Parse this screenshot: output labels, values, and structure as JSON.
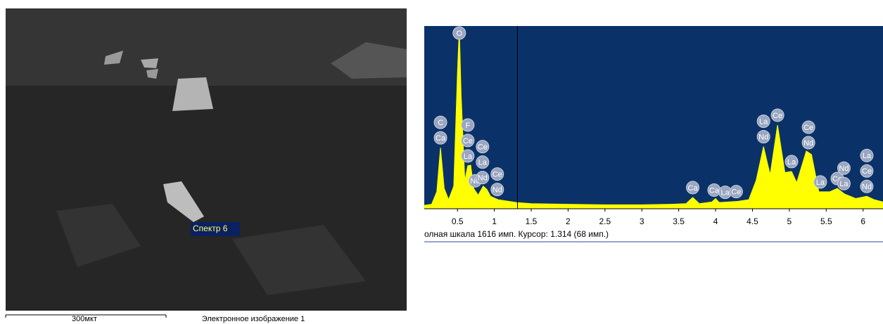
{
  "image": {
    "spot_label": "Спектр 6",
    "scale_bar": "300мкт",
    "caption": "Электронное изображение 1"
  },
  "chart_data": {
    "type": "area",
    "color": "#ffff00",
    "background": "#0a3268",
    "x": [
      0.05,
      0.15,
      0.22,
      0.27,
      0.32,
      0.38,
      0.45,
      0.5,
      0.525,
      0.55,
      0.6,
      0.64,
      0.68,
      0.72,
      0.78,
      0.85,
      0.9,
      0.95,
      1.05,
      1.15,
      1.3,
      1.5,
      2.0,
      2.5,
      3.0,
      3.4,
      3.6,
      3.69,
      3.78,
      3.95,
      4.0,
      4.05,
      4.3,
      4.45,
      4.55,
      4.65,
      4.74,
      4.84,
      4.94,
      5.03,
      5.1,
      5.23,
      5.3,
      5.4,
      5.55,
      5.65,
      5.75,
      5.9,
      6.05,
      6.15,
      6.27
    ],
    "values": [
      30,
      40,
      150,
      540,
      180,
      80,
      200,
      1200,
      1600,
      1000,
      250,
      380,
      385,
      180,
      120,
      200,
      170,
      110,
      80,
      70,
      55,
      45,
      40,
      35,
      35,
      40,
      45,
      100,
      45,
      60,
      90,
      55,
      65,
      80,
      250,
      550,
      300,
      740,
      320,
      330,
      230,
      510,
      480,
      150,
      150,
      180,
      130,
      90,
      110,
      80,
      60
    ],
    "xlim": [
      0.05,
      6.27
    ],
    "ylim": [
      0,
      1616
    ],
    "xticks": [
      0.5,
      1,
      1.5,
      2,
      2.5,
      3,
      3.5,
      4,
      4.5,
      5,
      5.5,
      6
    ],
    "cursor": 1.314,
    "status": "олная шкала 1616 имп. Курсор: 1.314  (68 имп.)",
    "peak_labels": [
      {
        "x": 0.27,
        "labels": [
          "C",
          "Ca"
        ]
      },
      {
        "x": 0.525,
        "labels": [
          "O"
        ]
      },
      {
        "x": 0.64,
        "labels": [
          "F",
          "Ce",
          "La"
        ]
      },
      {
        "x": 0.74,
        "labels": [
          "Nd"
        ]
      },
      {
        "x": 0.84,
        "labels": [
          "Ce",
          "La",
          "Nd"
        ]
      },
      {
        "x": 1.04,
        "labels": [
          "Ce",
          "Nd"
        ]
      },
      {
        "x": 3.69,
        "labels": [
          "Ca"
        ]
      },
      {
        "x": 3.98,
        "labels": [
          "Ca"
        ]
      },
      {
        "x": 4.13,
        "labels": [
          "La"
        ]
      },
      {
        "x": 4.28,
        "labels": [
          "Ce"
        ]
      },
      {
        "x": 4.65,
        "labels": [
          "La",
          "Nd"
        ]
      },
      {
        "x": 4.84,
        "labels": [
          "Ce"
        ]
      },
      {
        "x": 5.03,
        "labels": [
          "La"
        ]
      },
      {
        "x": 5.26,
        "labels": [
          "Ce",
          "Nd"
        ]
      },
      {
        "x": 5.42,
        "labels": [
          "La"
        ]
      },
      {
        "x": 5.65,
        "labels": [
          "Ce"
        ]
      },
      {
        "x": 5.74,
        "labels": [
          "Nd",
          "La"
        ]
      },
      {
        "x": 6.05,
        "labels": [
          "La",
          "Ce",
          "Nd"
        ]
      }
    ]
  }
}
